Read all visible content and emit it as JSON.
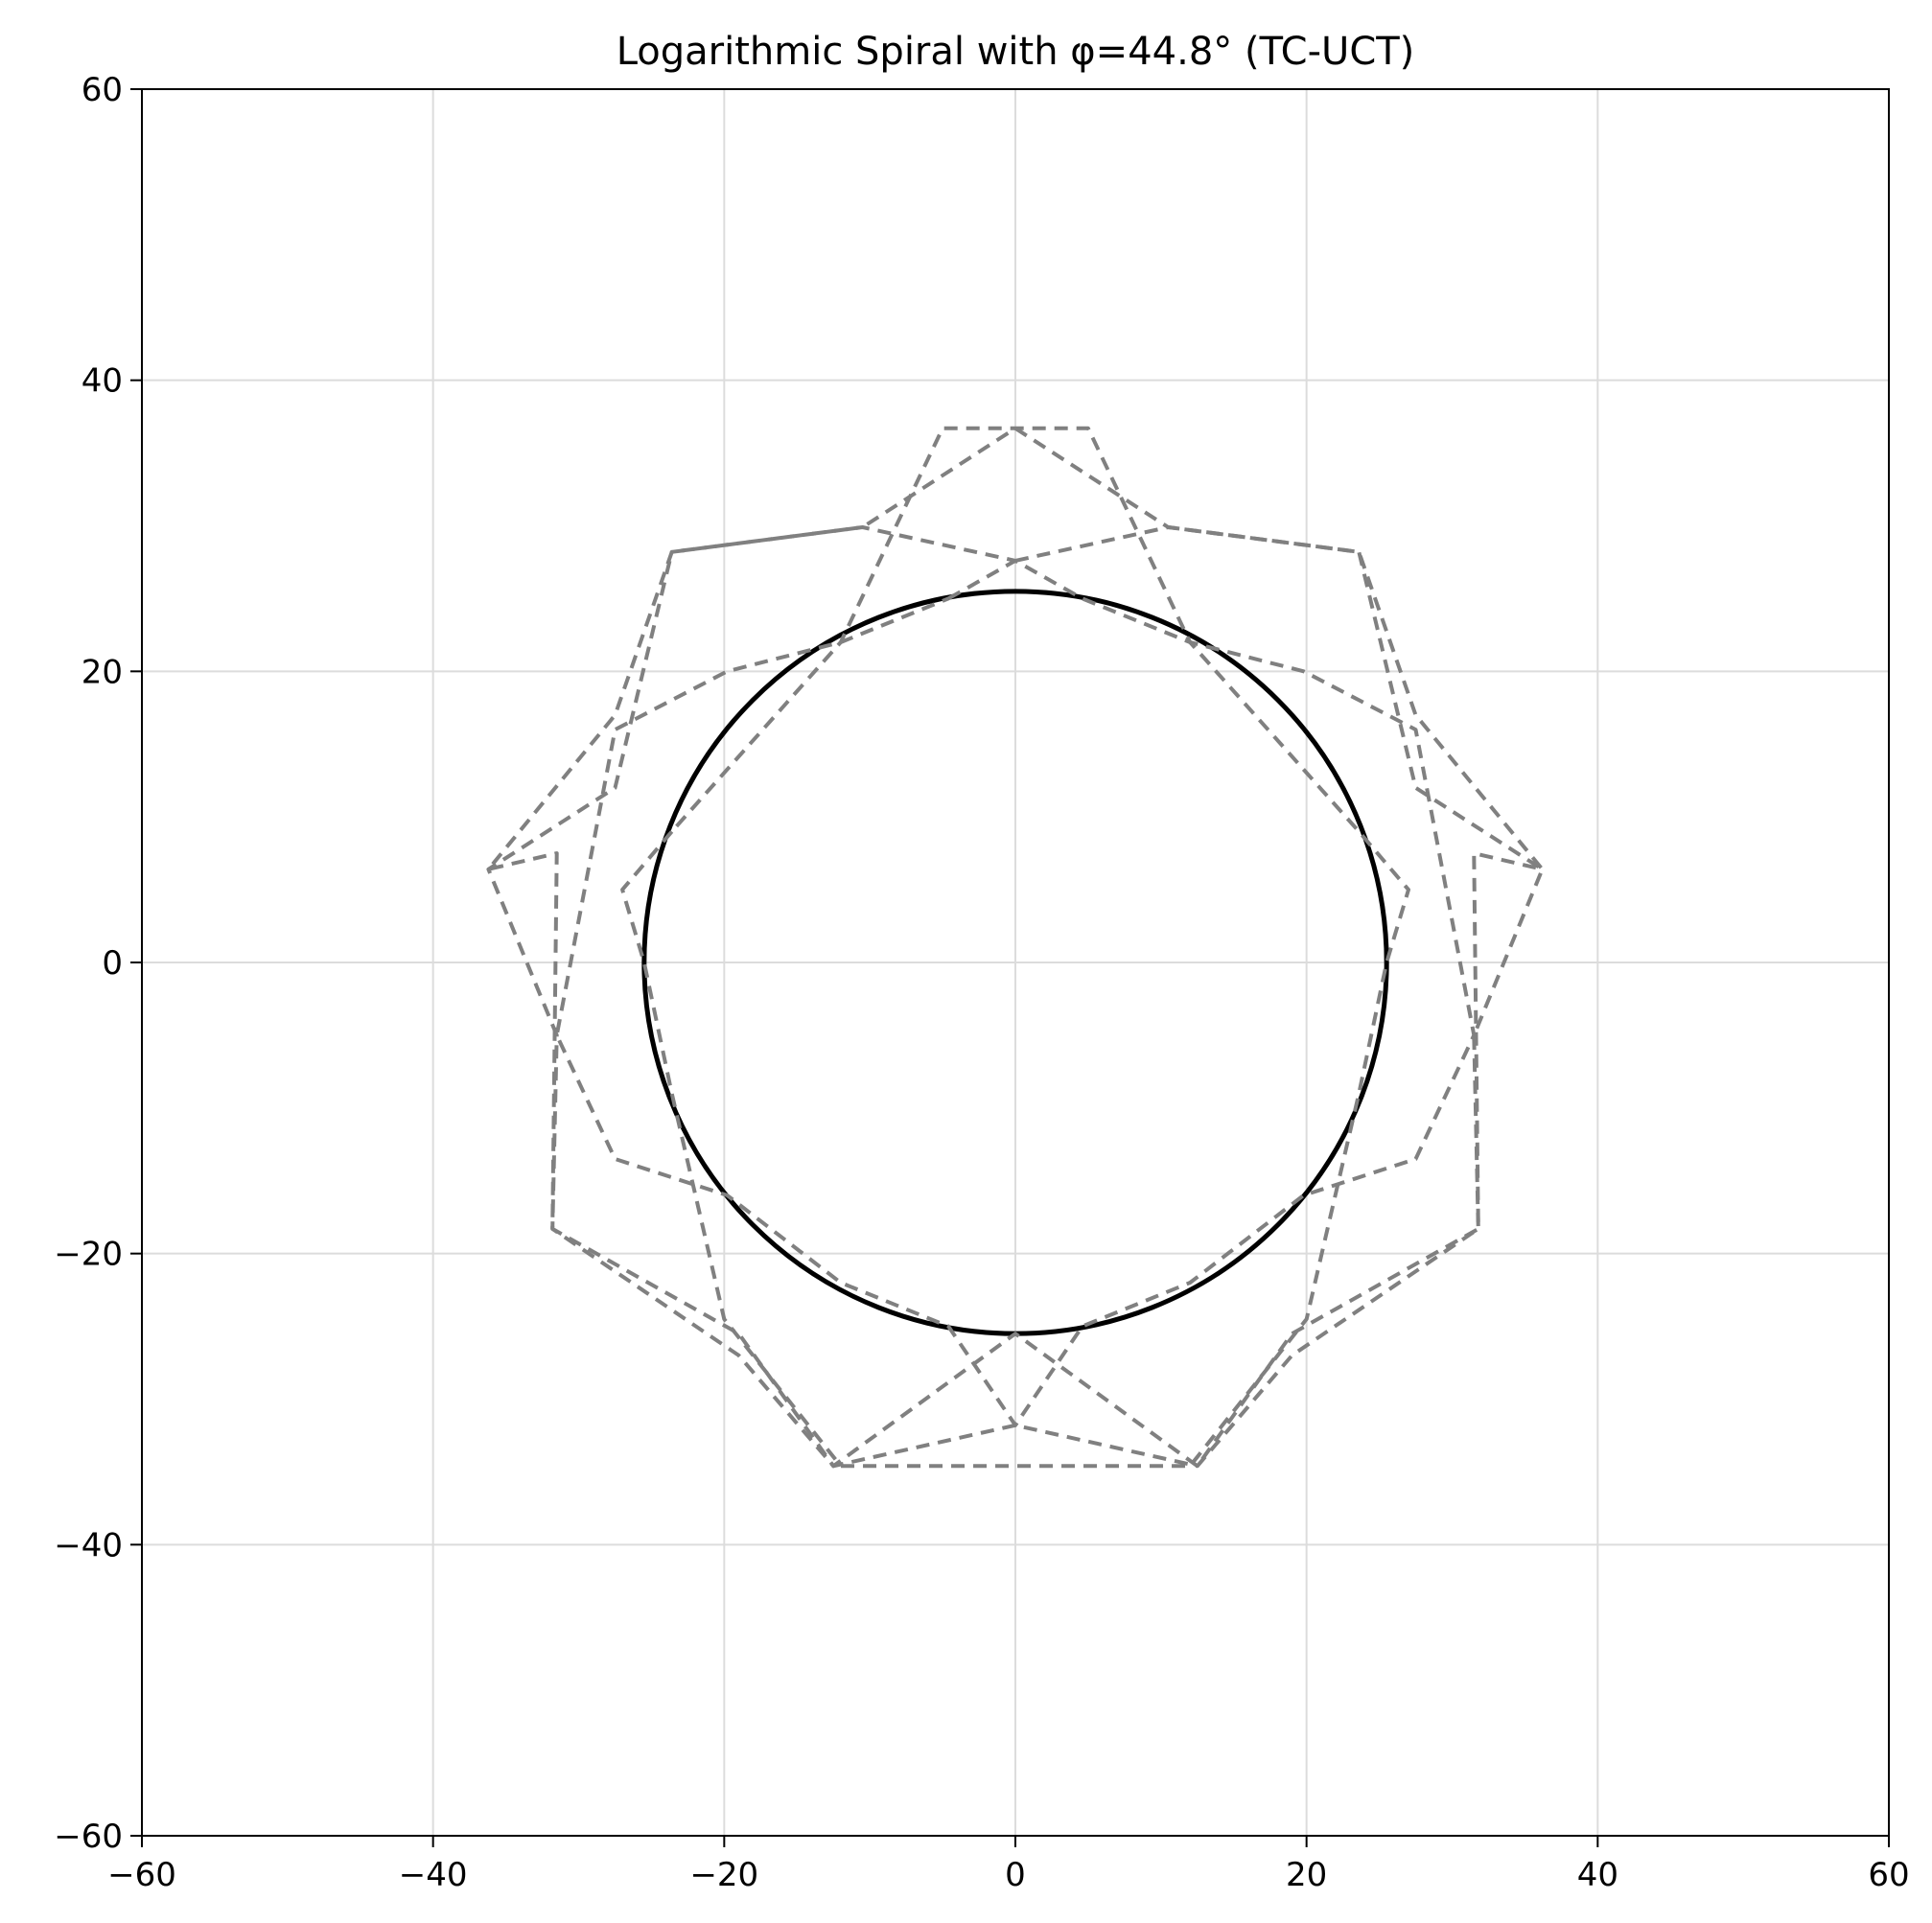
{
  "chart_data": {
    "type": "line",
    "title": "Logarithmic Spiral with φ=44.8° (TC-UCT)",
    "xlabel": "",
    "ylabel": "",
    "xlim": [
      -60,
      60
    ],
    "ylim": [
      -60,
      60
    ],
    "xticks": [
      -60,
      -40,
      -20,
      0,
      20,
      40,
      60
    ],
    "yticks": [
      -60,
      -40,
      -20,
      0,
      20,
      40,
      60
    ],
    "xtick_labels": [
      "−60",
      "−40",
      "−20",
      "0",
      "20",
      "40",
      "60"
    ],
    "ytick_labels": [
      "−60",
      "−40",
      "−20",
      "0",
      "20",
      "40",
      "60"
    ],
    "grid": true,
    "aspect": "equal",
    "series": [
      {
        "style": "solid",
        "color": "#000000",
        "shape": "circle",
        "center": [
          0,
          0
        ],
        "radius": 25.5
      },
      {
        "style": "dashed",
        "color": "#808080",
        "shape": "polyline",
        "x": [
          0,
          10.5,
          23.6,
          27.5,
          36.2,
          31.5,
          31.8,
          19.0,
          12.5,
          0,
          -12.5,
          -19.0,
          -31.8,
          -31.5,
          -36.2,
          -27.5,
          -23.6,
          -10.5,
          0
        ],
        "y": [
          36.7,
          29.9,
          28.2,
          12.0,
          6.4,
          -5.0,
          -18.3,
          -27.0,
          -34.6,
          -31.8,
          -34.6,
          -27.0,
          -18.3,
          -5.0,
          6.4,
          12.0,
          28.2,
          29.9,
          36.7
        ]
      },
      {
        "style": "dashed",
        "color": "#808080",
        "shape": "polyline",
        "x": [
          0,
          10.5,
          23.6,
          27.5,
          36.2,
          31.5,
          31.8,
          19.0,
          12.5,
          0,
          -12.5,
          -19.0,
          -31.8,
          -31.5,
          -36.2,
          -27.5,
          -23.6,
          -10.5,
          0
        ],
        "y": [
          27.6,
          29.9,
          28.2,
          17.0,
          6.4,
          7.5,
          -18.3,
          -25.5,
          -34.6,
          -25.5,
          -34.6,
          -25.5,
          -18.3,
          7.5,
          6.4,
          17.0,
          28.2,
          29.9,
          27.6
        ]
      },
      {
        "style": "dashed",
        "color": "#808080",
        "shape": "polyline",
        "x": [
          -4.6,
          0,
          4.6,
          12.0,
          19.8,
          27.5,
          31.5,
          27.5,
          19.8,
          12.0,
          4.6,
          0,
          -4.6,
          -12.0,
          -19.8,
          -27.5,
          -31.5,
          -27.5,
          -19.8,
          -12.0,
          -4.6
        ],
        "y": [
          25.0,
          27.6,
          25.0,
          22.0,
          20.0,
          16.0,
          -5.0,
          -13.5,
          -16.0,
          -22.0,
          -25.0,
          -31.8,
          -25.0,
          -22.0,
          -16.0,
          -13.5,
          -5.0,
          16.0,
          20.0,
          22.0,
          25.0
        ]
      },
      {
        "style": "dashed",
        "color": "#808080",
        "shape": "polyline",
        "x": [
          -23.6,
          -27.0,
          -25.5,
          -23.6,
          -20.0,
          -12.0,
          12.0,
          20.0,
          23.6,
          25.5,
          27.0,
          23.6,
          12.0,
          5.0,
          -5.0,
          -12.0,
          -23.6
        ],
        "y": [
          9.0,
          5.0,
          0,
          -9.0,
          -24.5,
          -34.6,
          -34.6,
          -24.5,
          -9.0,
          0,
          5.0,
          9.0,
          22.0,
          36.7,
          36.7,
          22.0,
          9.0
        ]
      }
    ]
  }
}
